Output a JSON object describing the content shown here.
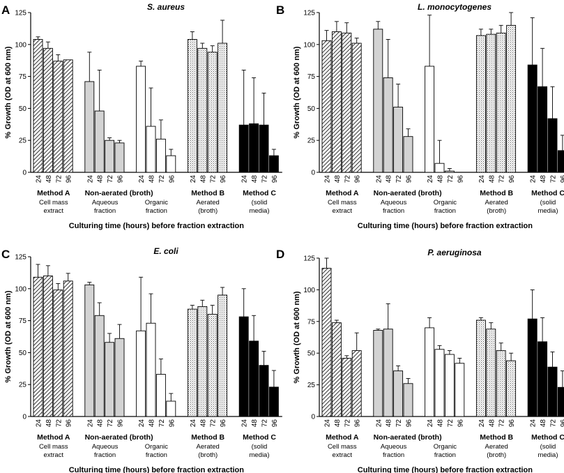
{
  "figure": {
    "ylabel": "% Growth (OD at 600 nm)",
    "xlabel": "Culturing time (hours) before fraction extraction",
    "group_labels": [
      {
        "main": "Method A",
        "sub": [
          "Cell mass",
          "extract"
        ]
      },
      {
        "main": "Non-aerated (broth)",
        "sub": [
          "Aqueous",
          "fraction"
        ]
      },
      {
        "main": "",
        "sub": [
          "Organic",
          "fraction"
        ]
      },
      {
        "main": "Method B",
        "sub": [
          "Aerated",
          "(broth)"
        ]
      },
      {
        "main": "Method C",
        "sub": [
          "(solid",
          "media)"
        ]
      }
    ],
    "tick_hours": [
      "24",
      "48",
      "72",
      "96"
    ],
    "y_ticks": [
      0,
      25,
      50,
      75,
      100,
      125
    ],
    "colors": {
      "axis": "#000000",
      "aqueous_fill": "#d3d3d3",
      "solid_fill": "#000000",
      "bar_edge": "#000000"
    }
  },
  "chart_data": [
    {
      "type": "bar",
      "panel": "A",
      "title": "S. aureus",
      "ylabel": "% Growth (OD at 600 nm)",
      "xlabel": "Culturing time (hours) before fraction extraction",
      "ylim": [
        0,
        125
      ],
      "series": [
        {
          "name": "Method A Cell mass extract",
          "pattern": "hatch",
          "values": [
            104,
            97,
            87,
            88
          ],
          "errors": [
            2,
            5,
            5,
            0
          ]
        },
        {
          "name": "Non-aerated Aqueous fraction",
          "pattern": "gray",
          "values": [
            71,
            48,
            25,
            23
          ],
          "errors": [
            23,
            32,
            2,
            2
          ]
        },
        {
          "name": "Non-aerated Organic fraction",
          "pattern": "white",
          "values": [
            83,
            36,
            26,
            13
          ],
          "errors": [
            4,
            30,
            15,
            5
          ]
        },
        {
          "name": "Method B Aerated (broth)",
          "pattern": "dots",
          "values": [
            104,
            97,
            94,
            101
          ],
          "errors": [
            6,
            4,
            5,
            18
          ]
        },
        {
          "name": "Method C (solid media)",
          "pattern": "black",
          "values": [
            37,
            38,
            37,
            13
          ],
          "errors": [
            43,
            36,
            25,
            5
          ]
        }
      ]
    },
    {
      "type": "bar",
      "panel": "B",
      "title": "L. monocytogenes",
      "ylabel": "% Growth (OD at 600 nm)",
      "xlabel": "Culturing time (hours) before fraction extraction",
      "ylim": [
        0,
        125
      ],
      "series": [
        {
          "name": "Method A Cell mass extract",
          "pattern": "hatch",
          "values": [
            103,
            110,
            109,
            101
          ],
          "errors": [
            8,
            8,
            8,
            4
          ]
        },
        {
          "name": "Non-aerated Aqueous fraction",
          "pattern": "gray",
          "values": [
            112,
            74,
            51,
            28
          ],
          "errors": [
            6,
            30,
            18,
            6
          ]
        },
        {
          "name": "Non-aerated Organic fraction",
          "pattern": "white",
          "values": [
            83,
            7,
            1,
            0
          ],
          "errors": [
            40,
            18,
            2,
            0
          ]
        },
        {
          "name": "Method B Aerated (broth)",
          "pattern": "dots",
          "values": [
            107,
            108,
            109,
            115
          ],
          "errors": [
            5,
            4,
            6,
            10
          ]
        },
        {
          "name": "Method C (solid media)",
          "pattern": "black",
          "values": [
            84,
            67,
            42,
            17
          ],
          "errors": [
            37,
            30,
            25,
            12
          ]
        }
      ]
    },
    {
      "type": "bar",
      "panel": "C",
      "title": "E. coli",
      "ylabel": "% Growth (OD at 600 nm)",
      "xlabel": "Culturing time (hours) before fraction extraction",
      "ylim": [
        0,
        125
      ],
      "series": [
        {
          "name": "Method A Cell mass extract",
          "pattern": "hatch",
          "values": [
            109,
            110,
            99,
            106
          ],
          "errors": [
            10,
            8,
            5,
            6
          ]
        },
        {
          "name": "Non-aerated Aqueous fraction",
          "pattern": "gray",
          "values": [
            103,
            79,
            58,
            61
          ],
          "errors": [
            2,
            10,
            7,
            11
          ]
        },
        {
          "name": "Non-aerated Organic fraction",
          "pattern": "white",
          "values": [
            67,
            73,
            33,
            12
          ],
          "errors": [
            42,
            23,
            12,
            6
          ]
        },
        {
          "name": "Method B Aerated (broth)",
          "pattern": "dots",
          "values": [
            84,
            86,
            80,
            95
          ],
          "errors": [
            3,
            5,
            7,
            6
          ]
        },
        {
          "name": "Method C (solid media)",
          "pattern": "black",
          "values": [
            78,
            59,
            40,
            23
          ],
          "errors": [
            22,
            20,
            11,
            13
          ]
        }
      ]
    },
    {
      "type": "bar",
      "panel": "D",
      "title": "P. aeruginosa",
      "ylabel": "% Growth (OD at 600 nm)",
      "xlabel": "Culturing time (hours) before fraction extraction",
      "ylim": [
        0,
        125
      ],
      "series": [
        {
          "name": "Method A Cell mass extract",
          "pattern": "hatch",
          "values": [
            117,
            74,
            46,
            52
          ],
          "errors": [
            8,
            2,
            2,
            14
          ]
        },
        {
          "name": "Non-aerated Aqueous fraction",
          "pattern": "gray",
          "values": [
            68,
            69,
            36,
            26
          ],
          "errors": [
            1,
            20,
            4,
            4
          ]
        },
        {
          "name": "Non-aerated Organic fraction",
          "pattern": "white",
          "values": [
            70,
            53,
            49,
            42
          ],
          "errors": [
            8,
            3,
            3,
            4
          ]
        },
        {
          "name": "Method B Aerated (broth)",
          "pattern": "dots",
          "values": [
            76,
            69,
            52,
            44
          ],
          "errors": [
            2,
            5,
            6,
            6
          ]
        },
        {
          "name": "Method C (solid media)",
          "pattern": "black",
          "values": [
            77,
            59,
            39,
            23
          ],
          "errors": [
            23,
            19,
            12,
            13
          ]
        }
      ]
    }
  ]
}
